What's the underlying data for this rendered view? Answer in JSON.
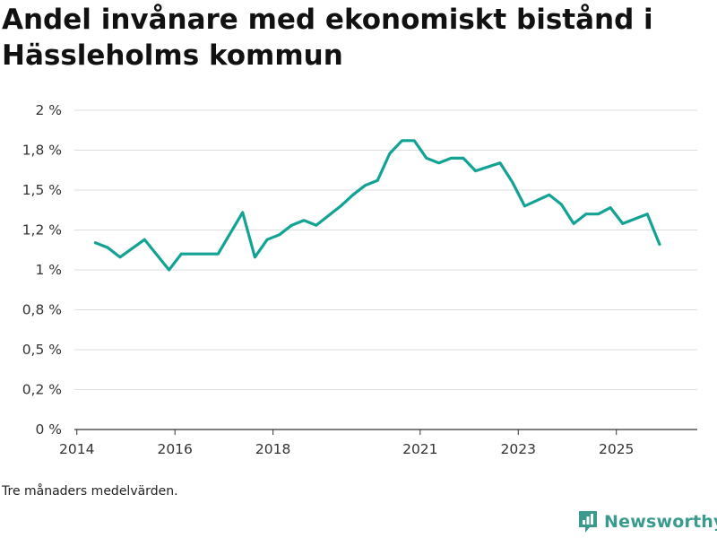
{
  "title": "Andel invånare med ekonomiskt bistånd i Hässleholms kommun",
  "note": "Tre månaders medelvärden.",
  "brand": {
    "name": "Newsworthy",
    "icon": "newsworthy-logo-icon",
    "color": "#3a9a8e"
  },
  "colors": {
    "line": "#12a394",
    "grid": "#dddddd",
    "axis": "#333333"
  },
  "chart_data": {
    "type": "line",
    "title": "Andel invånare med ekonomiskt bistånd i Hässleholms kommun",
    "xlabel": "",
    "ylabel": "",
    "ylim": [
      0,
      2
    ],
    "xlim": [
      2013.95,
      2026.65
    ],
    "y_ticks": [
      {
        "value": 0,
        "label": "0 %"
      },
      {
        "value": 0.25,
        "label": "0,2 %"
      },
      {
        "value": 0.5,
        "label": "0,5 %"
      },
      {
        "value": 0.75,
        "label": "0,8 %"
      },
      {
        "value": 1.0,
        "label": "1 %"
      },
      {
        "value": 1.25,
        "label": "1,2 %"
      },
      {
        "value": 1.5,
        "label": "1,5 %"
      },
      {
        "value": 1.75,
        "label": "1,8 %"
      },
      {
        "value": 2.0,
        "label": "2 %"
      }
    ],
    "x_ticks": [
      {
        "value": 2014,
        "label": "2014"
      },
      {
        "value": 2016,
        "label": "2016"
      },
      {
        "value": 2018,
        "label": "2018"
      },
      {
        "value": 2021,
        "label": "2021"
      },
      {
        "value": 2023,
        "label": "2023"
      },
      {
        "value": 2025,
        "label": "2025"
      }
    ],
    "series": [
      {
        "name": "Andel invånare med ekonomiskt bistånd",
        "x": [
          2014.38,
          2014.63,
          2014.88,
          2015.38,
          2015.88,
          2016.13,
          2016.63,
          2016.88,
          2017.38,
          2017.63,
          2017.88,
          2018.13,
          2018.38,
          2018.63,
          2018.88,
          2019.38,
          2019.63,
          2019.88,
          2020.13,
          2020.38,
          2020.63,
          2020.88,
          2021.13,
          2021.38,
          2021.63,
          2021.88,
          2022.13,
          2022.63,
          2022.88,
          2023.13,
          2023.63,
          2023.88,
          2024.13,
          2024.38,
          2024.63,
          2024.88,
          2025.13,
          2025.63,
          2025.88
        ],
        "values": [
          1.17,
          1.14,
          1.08,
          1.19,
          1.0,
          1.1,
          1.1,
          1.1,
          1.36,
          1.08,
          1.19,
          1.22,
          1.28,
          1.31,
          1.28,
          1.4,
          1.47,
          1.53,
          1.56,
          1.73,
          1.81,
          1.81,
          1.7,
          1.67,
          1.7,
          1.7,
          1.62,
          1.67,
          1.55,
          1.4,
          1.47,
          1.41,
          1.29,
          1.35,
          1.35,
          1.39,
          1.29,
          1.35,
          1.16
        ]
      }
    ]
  }
}
